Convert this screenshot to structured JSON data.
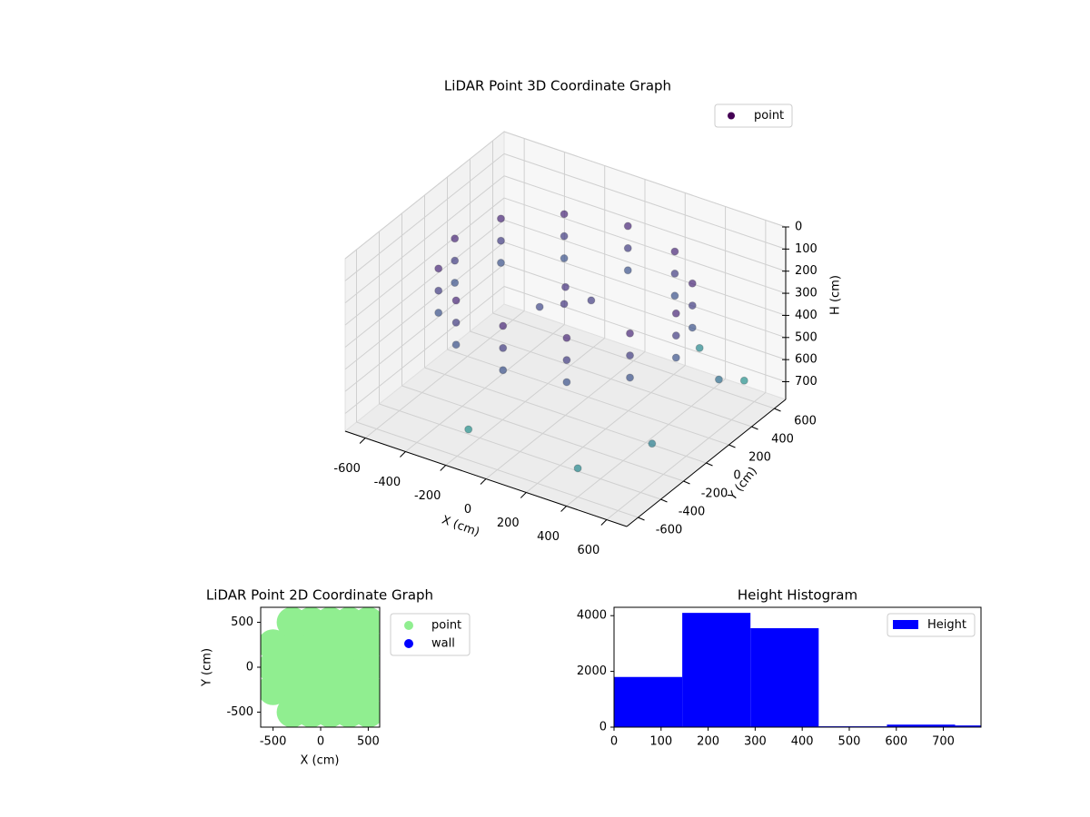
{
  "chart_data": [
    {
      "type": "scatter3d",
      "title": "LiDAR Point 3D Coordinate Graph",
      "xlabel": "X (cm)",
      "ylabel": "Y (cm)",
      "zlabel": "H (cm)",
      "xlim": [
        -700,
        700
      ],
      "ylim": [
        -700,
        700
      ],
      "zlim": [
        780,
        0
      ],
      "xticks": [
        -600,
        -400,
        -200,
        0,
        200,
        400,
        600
      ],
      "yticks": [
        -600,
        -400,
        -200,
        0,
        200,
        400,
        600
      ],
      "zticks": [
        0,
        100,
        200,
        300,
        400,
        500,
        600,
        700
      ],
      "colormap": "viridis",
      "legend": "upper right",
      "grid": true,
      "series": [
        {
          "name": "point",
          "color": "#440154",
          "x": [
            550,
            476,
            275,
            0,
            -275,
            -476,
            -550,
            -476,
            -275,
            0,
            275,
            476,
            550,
            476,
            275,
            0,
            -275,
            -476,
            -550,
            -476,
            -275,
            0,
            275,
            476,
            550,
            476,
            275,
            0,
            -275,
            -476,
            -550,
            -476,
            -275,
            0,
            275,
            476,
            0,
            100,
            -100,
            50,
            550,
            300,
            600,
            -200,
            400,
            650
          ],
          "y": [
            0,
            275,
            476,
            550,
            476,
            275,
            0,
            -275,
            -476,
            -550,
            -476,
            -275,
            0,
            275,
            476,
            550,
            476,
            275,
            0,
            -275,
            -476,
            -550,
            -476,
            -275,
            0,
            275,
            476,
            550,
            476,
            275,
            0,
            -275,
            -476,
            -550,
            -476,
            -275,
            0,
            50,
            -50,
            -100,
            600,
            650,
            -300,
            -500,
            -600,
            200
          ],
          "z": [
            150,
            150,
            150,
            150,
            150,
            150,
            150,
            150,
            150,
            150,
            150,
            150,
            250,
            250,
            250,
            250,
            250,
            250,
            250,
            250,
            250,
            250,
            250,
            250,
            350,
            350,
            350,
            350,
            350,
            350,
            350,
            350,
            350,
            350,
            350,
            350,
            200,
            250,
            300,
            220,
            700,
            650,
            600,
            700,
            650,
            500
          ]
        }
      ]
    },
    {
      "type": "scatter",
      "title": "LiDAR Point 2D Coordinate Graph",
      "xlabel": "X (cm)",
      "ylabel": "Y (cm)",
      "xlim": [
        -630,
        620
      ],
      "ylim": [
        -667,
        667
      ],
      "xticks": [
        -500,
        0,
        500
      ],
      "yticks": [
        -500,
        0,
        500
      ],
      "legend": "outside right",
      "series": [
        {
          "name": "point",
          "color": "#90ee90",
          "x": [
            -500,
            -500,
            -500,
            -300,
            -300,
            -300,
            -300,
            -300,
            -100,
            -100,
            -100,
            -100,
            -100,
            100,
            100,
            100,
            100,
            100,
            300,
            300,
            300,
            300,
            300,
            500,
            500,
            500,
            500,
            500
          ],
          "y": [
            -250,
            0,
            250,
            -500,
            -250,
            0,
            250,
            500,
            -500,
            -250,
            0,
            250,
            500,
            -500,
            -250,
            0,
            250,
            500,
            -500,
            -250,
            0,
            250,
            500,
            -500,
            -250,
            0,
            250,
            500
          ]
        },
        {
          "name": "wall",
          "color": "#0000ff",
          "x": [],
          "y": []
        }
      ]
    },
    {
      "type": "histogram",
      "title": "Height Histogram",
      "bins": [
        0,
        145,
        290,
        435,
        580,
        725,
        870
      ],
      "values": [
        1800,
        4100,
        3550,
        30,
        90,
        60
      ],
      "color": "#0000ff",
      "series_name": "Height",
      "legend": "upper right",
      "xlim": [
        0,
        780
      ],
      "ylim": [
        0,
        4300
      ],
      "xticks": [
        0,
        100,
        200,
        300,
        400,
        500,
        600,
        700
      ],
      "yticks": [
        0,
        2000,
        4000
      ]
    }
  ]
}
